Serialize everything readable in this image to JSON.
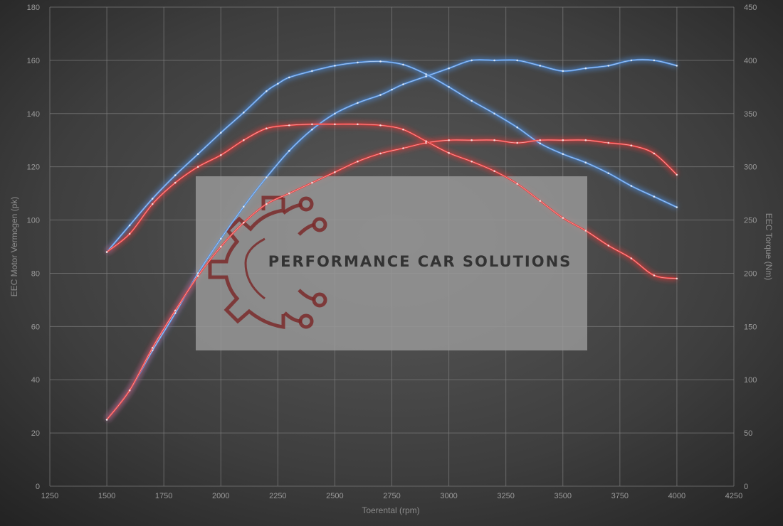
{
  "chart_data": {
    "type": "line",
    "xlabel": "Toerental (rpm)",
    "ylabel_left": "EEC Motor Vermogen (pk)",
    "ylabel_right": "EEC Torque (Nm)",
    "xlim": [
      1250,
      4250
    ],
    "x_ticks": [
      1250,
      1500,
      1750,
      2000,
      2250,
      2500,
      2750,
      3000,
      3250,
      3500,
      3750,
      4000,
      4250
    ],
    "ylim_left": [
      0,
      180
    ],
    "y_ticks_left": [
      0,
      20,
      40,
      60,
      80,
      100,
      120,
      140,
      160,
      180
    ],
    "ylim_right": [
      0,
      450
    ],
    "y_ticks_right": [
      0,
      50,
      100,
      150,
      200,
      250,
      300,
      350,
      400,
      450
    ],
    "grid": true,
    "legend": "none",
    "series": [
      {
        "color": "#4f8fe0",
        "axis": "left",
        "x": [
          1500,
          1600,
          1700,
          1800,
          1900,
          2000,
          2100,
          2200,
          2300,
          2400,
          2500,
          2600,
          2700,
          2750,
          2800,
          2900,
          3000,
          3100,
          3200,
          3300,
          3400,
          3500,
          3600,
          3700,
          3800,
          3900,
          4000
        ],
        "values": [
          25,
          36,
          51,
          65,
          80,
          93,
          105,
          116,
          126,
          134,
          140,
          144,
          147,
          149,
          151,
          154,
          157,
          160,
          160,
          160,
          158,
          156,
          157,
          158,
          160,
          160,
          158
        ]
      },
      {
        "color": "#4f8fe0",
        "axis": "right",
        "x": [
          1500,
          1600,
          1700,
          1800,
          1900,
          2000,
          2100,
          2200,
          2250,
          2300,
          2400,
          2500,
          2600,
          2700,
          2800,
          2900,
          3000,
          3100,
          3200,
          3300,
          3400,
          3500,
          3600,
          3700,
          3800,
          3900,
          4000
        ],
        "values": [
          220,
          245,
          270,
          292,
          312,
          332,
          351,
          371,
          378,
          384,
          390,
          395,
          398,
          399,
          396,
          387,
          375,
          362,
          350,
          337,
          322,
          312,
          304,
          294,
          282,
          272,
          262
        ]
      },
      {
        "color": "#e83a3a",
        "axis": "left",
        "x": [
          1500,
          1600,
          1700,
          1800,
          1900,
          2000,
          2100,
          2200,
          2300,
          2400,
          2500,
          2600,
          2700,
          2800,
          2900,
          3000,
          3100,
          3200,
          3300,
          3400,
          3500,
          3600,
          3700,
          3800,
          3900,
          4000
        ],
        "values": [
          25,
          36,
          52,
          66,
          79,
          90,
          99,
          106,
          110,
          114,
          118,
          122,
          125,
          127,
          129,
          130,
          130,
          130,
          129,
          130,
          130,
          130,
          129,
          128,
          125,
          117
        ]
      },
      {
        "color": "#e83a3a",
        "axis": "right",
        "x": [
          1500,
          1600,
          1700,
          1800,
          1900,
          2000,
          2100,
          2200,
          2300,
          2400,
          2500,
          2600,
          2700,
          2800,
          2900,
          3000,
          3100,
          3200,
          3300,
          3400,
          3500,
          3600,
          3700,
          3800,
          3900,
          4000
        ],
        "values": [
          220,
          237,
          265,
          285,
          300,
          311,
          325,
          336,
          339,
          340,
          340,
          340,
          339,
          335,
          324,
          313,
          305,
          296,
          284,
          268,
          252,
          240,
          226,
          214,
          198,
          195
        ]
      }
    ]
  },
  "watermark": {
    "text": "PERFORMANCE CAR SOLUTIONS",
    "logo_color": "#7a2a2a",
    "box_color": "#9a9a9a"
  },
  "colors": {
    "background_center": "#5a5a5a",
    "background_edge": "#222222",
    "grid": "#7d7d7d",
    "blue": "#4f8fe0",
    "red": "#e83a3a"
  }
}
